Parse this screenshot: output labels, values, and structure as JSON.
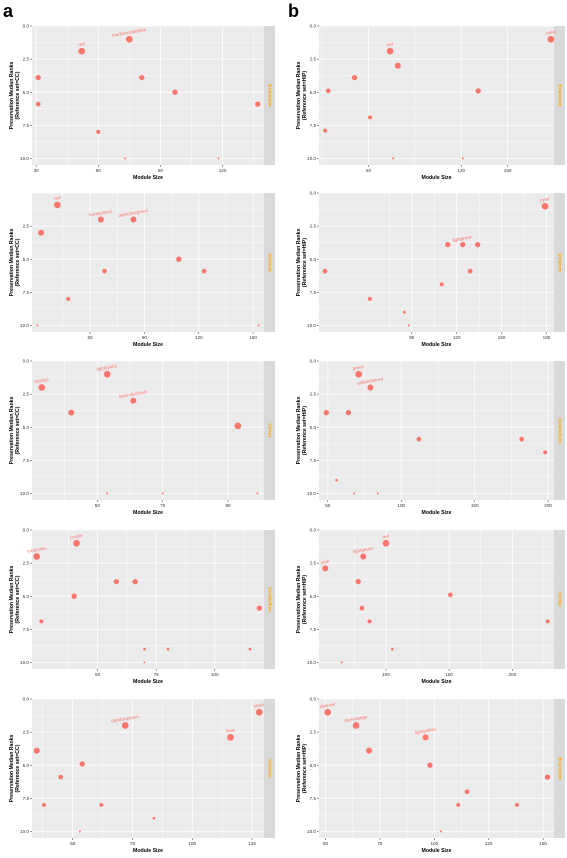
{
  "panel_labels": [
    "a",
    "b"
  ],
  "colors": {
    "point": "#f8766d",
    "panel_bg": "#ebebeb",
    "grid": "#ffffff",
    "strip_bg": "#d9d9d9",
    "strip_text": "#ffa500"
  },
  "chart_data": [
    {
      "type": "scatter",
      "column": "a",
      "row": 0,
      "xlabel": "Module Size",
      "ylabel": [
        "Preservation Median Ranks",
        "(Reference set=CC)"
      ],
      "strip": "Brainstem",
      "xlim": [
        28,
        140
      ],
      "ylim": [
        0,
        10.5
      ],
      "xticks": [
        30,
        60,
        90,
        120
      ],
      "yticks": [
        0,
        2.5,
        5,
        7.5,
        10
      ],
      "grid": true,
      "points": [
        {
          "x": 52,
          "y": 1.9,
          "size": 5,
          "label": "red"
        },
        {
          "x": 75,
          "y": 1.0,
          "size": 5,
          "label": "mediumslateblue"
        },
        {
          "x": 31,
          "y": 3.9,
          "size": 4,
          "label": ""
        },
        {
          "x": 81,
          "y": 3.9,
          "size": 4,
          "label": ""
        },
        {
          "x": 97,
          "y": 5.0,
          "size": 4,
          "label": ""
        },
        {
          "x": 31,
          "y": 5.9,
          "size": 3.5,
          "label": ""
        },
        {
          "x": 137,
          "y": 5.9,
          "size": 4,
          "label": ""
        },
        {
          "x": 60,
          "y": 8.0,
          "size": 3,
          "label": ""
        },
        {
          "x": 73,
          "y": 10.0,
          "size": 1.5,
          "label": ""
        },
        {
          "x": 118,
          "y": 10.0,
          "size": 1.5,
          "label": ""
        }
      ]
    },
    {
      "type": "scatter",
      "column": "b",
      "row": 0,
      "xlabel": "Module Size",
      "ylabel": [
        "Preservation Median Ranks",
        "(Reference set=HIP)"
      ],
      "strip": "Brainstem",
      "xlim": [
        28,
        180
      ],
      "ylim": [
        0,
        10.5
      ],
      "xticks": [
        60,
        120,
        150
      ],
      "yticks": [
        0,
        2.5,
        5,
        7.5,
        10
      ],
      "grid": true,
      "points": [
        {
          "x": 74,
          "y": 1.9,
          "size": 5,
          "label": "red"
        },
        {
          "x": 178,
          "y": 1.0,
          "size": 5,
          "label": "violet"
        },
        {
          "x": 79,
          "y": 3.0,
          "size": 4.5,
          "label": ""
        },
        {
          "x": 51,
          "y": 3.9,
          "size": 4,
          "label": ""
        },
        {
          "x": 34,
          "y": 4.9,
          "size": 3.5,
          "label": ""
        },
        {
          "x": 131,
          "y": 4.9,
          "size": 4,
          "label": ""
        },
        {
          "x": 61,
          "y": 6.9,
          "size": 3,
          "label": ""
        },
        {
          "x": 32,
          "y": 7.9,
          "size": 3,
          "label": ""
        },
        {
          "x": 76,
          "y": 10.0,
          "size": 1.5,
          "label": ""
        },
        {
          "x": 121,
          "y": 10.0,
          "size": 1.5,
          "label": ""
        }
      ]
    },
    {
      "type": "scatter",
      "column": "a",
      "row": 1,
      "xlabel": "Module Size",
      "ylabel": [
        "Preservation Median Ranks",
        "(Reference set=CC)"
      ],
      "strip": "Striatum",
      "xlim": [
        28,
        156
      ],
      "ylim": [
        0,
        10.5
      ],
      "xticks": [
        60,
        90,
        120,
        150
      ],
      "yticks": [
        2.5,
        5,
        7.5,
        10
      ],
      "grid": true,
      "points": [
        {
          "x": 42,
          "y": 0.9,
          "size": 5,
          "label": "red"
        },
        {
          "x": 66,
          "y": 2.0,
          "size": 4.5,
          "label": "honeydew1"
        },
        {
          "x": 84,
          "y": 2.0,
          "size": 4.5,
          "label": "darkolivegreen"
        },
        {
          "x": 33,
          "y": 3.0,
          "size": 4.5,
          "label": ""
        },
        {
          "x": 109,
          "y": 5.0,
          "size": 4,
          "label": ""
        },
        {
          "x": 68,
          "y": 5.9,
          "size": 3.5,
          "label": ""
        },
        {
          "x": 123,
          "y": 5.9,
          "size": 3.5,
          "label": ""
        },
        {
          "x": 48,
          "y": 8.0,
          "size": 3,
          "label": ""
        },
        {
          "x": 31,
          "y": 10.0,
          "size": 1.5,
          "label": ""
        },
        {
          "x": 153,
          "y": 10.0,
          "size": 1.5,
          "label": ""
        }
      ]
    },
    {
      "type": "scatter",
      "column": "b",
      "row": 1,
      "xlabel": "Module Size",
      "ylabel": [
        "Preservation Median Ranks",
        "(Reference set=HIP)"
      ],
      "strip": "Striatum",
      "xlim": [
        28,
        185
      ],
      "ylim": [
        0,
        10.5
      ],
      "xticks": [
        90,
        120,
        150,
        180
      ],
      "yticks": [
        0,
        2.5,
        5,
        7.5,
        10
      ],
      "grid": true,
      "points": [
        {
          "x": 179,
          "y": 1.0,
          "size": 5,
          "label": "cyan"
        },
        {
          "x": 114,
          "y": 3.9,
          "size": 4,
          "label": ""
        },
        {
          "x": 124,
          "y": 3.9,
          "size": 4,
          "label": "lightgreen"
        },
        {
          "x": 134,
          "y": 3.9,
          "size": 4,
          "label": ""
        },
        {
          "x": 32,
          "y": 5.9,
          "size": 3.5,
          "label": ""
        },
        {
          "x": 129,
          "y": 5.9,
          "size": 3.5,
          "label": ""
        },
        {
          "x": 110,
          "y": 6.9,
          "size": 3,
          "label": ""
        },
        {
          "x": 62,
          "y": 8.0,
          "size": 3,
          "label": ""
        },
        {
          "x": 85,
          "y": 9.0,
          "size": 2,
          "label": ""
        },
        {
          "x": 88,
          "y": 10.0,
          "size": 1.5,
          "label": ""
        }
      ]
    },
    {
      "type": "scatter",
      "column": "a",
      "row": 2,
      "xlabel": "Module Size",
      "ylabel": [
        "Preservation Median Ranks",
        "(Reference set=CC)"
      ],
      "strip": "Cortex",
      "xlim": [
        30,
        101
      ],
      "ylim": [
        0,
        10.5
      ],
      "xticks": [
        50,
        70,
        90
      ],
      "yticks": [
        0,
        2.5,
        5,
        7.5,
        10
      ],
      "grid": true,
      "points": [
        {
          "x": 33,
          "y": 2.0,
          "size": 5,
          "label": "thistle2"
        },
        {
          "x": 53,
          "y": 1.0,
          "size": 5,
          "label": "lightcyan1"
        },
        {
          "x": 61,
          "y": 3.0,
          "size": 4.5,
          "label": "lavenderblush"
        },
        {
          "x": 42,
          "y": 3.9,
          "size": 4.5,
          "label": ""
        },
        {
          "x": 93,
          "y": 4.9,
          "size": 5,
          "label": ""
        },
        {
          "x": 53,
          "y": 10.0,
          "size": 1.5,
          "label": ""
        },
        {
          "x": 70,
          "y": 10.0,
          "size": 1.5,
          "label": ""
        },
        {
          "x": 99,
          "y": 10.0,
          "size": 1.5,
          "label": ""
        }
      ]
    },
    {
      "type": "scatter",
      "column": "b",
      "row": 2,
      "xlabel": "Module Size",
      "ylabel": [
        "Preservation Median Ranks",
        "(Reference set=HIP)"
      ],
      "strip": "Cerebellum",
      "xlim": [
        44,
        204
      ],
      "ylim": [
        0,
        10.5
      ],
      "xticks": [
        50,
        100,
        150,
        200
      ],
      "yticks": [
        0,
        2.5,
        5,
        7.5,
        10
      ],
      "grid": true,
      "points": [
        {
          "x": 71,
          "y": 1.0,
          "size": 5,
          "label": "green"
        },
        {
          "x": 79,
          "y": 2.0,
          "size": 4.5,
          "label": "palevioletred"
        },
        {
          "x": 49,
          "y": 3.9,
          "size": 4,
          "label": ""
        },
        {
          "x": 64,
          "y": 3.9,
          "size": 4,
          "label": ""
        },
        {
          "x": 112,
          "y": 5.9,
          "size": 3.5,
          "label": ""
        },
        {
          "x": 182,
          "y": 5.9,
          "size": 3.5,
          "label": ""
        },
        {
          "x": 198,
          "y": 6.9,
          "size": 3,
          "label": ""
        },
        {
          "x": 56,
          "y": 9.0,
          "size": 2,
          "label": ""
        },
        {
          "x": 68,
          "y": 10.0,
          "size": 1.5,
          "label": ""
        },
        {
          "x": 84,
          "y": 10.0,
          "size": 1.5,
          "label": ""
        }
      ]
    },
    {
      "type": "scatter",
      "column": "a",
      "row": 3,
      "xlabel": "Module Size",
      "ylabel": [
        "Preservation Median Ranks",
        "(Reference set=CC)"
      ],
      "strip": "Cerebellum",
      "xlim": [
        22,
        121
      ],
      "ylim": [
        0,
        10.5
      ],
      "xticks": [
        50,
        75,
        100
      ],
      "yticks": [
        0,
        2.5,
        5,
        7.5,
        10
      ],
      "grid": true,
      "points": [
        {
          "x": 24,
          "y": 2.0,
          "size": 5,
          "label": "turquoise"
        },
        {
          "x": 41,
          "y": 1.0,
          "size": 5,
          "label": "purple"
        },
        {
          "x": 58,
          "y": 3.9,
          "size": 4,
          "label": ""
        },
        {
          "x": 66,
          "y": 3.9,
          "size": 4,
          "label": ""
        },
        {
          "x": 40,
          "y": 5.0,
          "size": 4,
          "label": ""
        },
        {
          "x": 119,
          "y": 5.9,
          "size": 4,
          "label": ""
        },
        {
          "x": 26,
          "y": 6.9,
          "size": 3,
          "label": ""
        },
        {
          "x": 70,
          "y": 9.0,
          "size": 2,
          "label": ""
        },
        {
          "x": 80,
          "y": 9.0,
          "size": 2,
          "label": ""
        },
        {
          "x": 115,
          "y": 9.0,
          "size": 2,
          "label": ""
        },
        {
          "x": 70,
          "y": 10.0,
          "size": 1.5,
          "label": ""
        }
      ]
    },
    {
      "type": "scatter",
      "column": "b",
      "row": 3,
      "xlabel": "Module Size",
      "ylabel": [
        "Preservation Median Ranks",
        "(Reference set=HIP)"
      ],
      "strip": "Cortex",
      "xlim": [
        47,
        233
      ],
      "ylim": [
        0,
        10.5
      ],
      "xticks": [
        100,
        150,
        200
      ],
      "yticks": [
        0,
        2.5,
        5,
        7.5,
        10
      ],
      "grid": true,
      "points": [
        {
          "x": 52,
          "y": 2.9,
          "size": 4.5,
          "label": "pink"
        },
        {
          "x": 82,
          "y": 2.0,
          "size": 4.5,
          "label": "lightgreen"
        },
        {
          "x": 100,
          "y": 1.0,
          "size": 5,
          "label": "red"
        },
        {
          "x": 78,
          "y": 3.9,
          "size": 4,
          "label": ""
        },
        {
          "x": 151,
          "y": 4.9,
          "size": 3.5,
          "label": ""
        },
        {
          "x": 81,
          "y": 5.9,
          "size": 3.5,
          "label": ""
        },
        {
          "x": 87,
          "y": 6.9,
          "size": 3,
          "label": ""
        },
        {
          "x": 228,
          "y": 6.9,
          "size": 3,
          "label": ""
        },
        {
          "x": 105,
          "y": 9.0,
          "size": 2,
          "label": ""
        },
        {
          "x": 65,
          "y": 10.0,
          "size": 1.5,
          "label": ""
        }
      ]
    },
    {
      "type": "scatter",
      "column": "a",
      "row": 4,
      "xlabel": "Module Size",
      "ylabel": [
        "Preservation Median Ranks",
        "(Reference set=CC)"
      ],
      "strip": "Striatum",
      "xlim": [
        33,
        130
      ],
      "ylim": [
        0,
        10.5
      ],
      "xticks": [
        50,
        75,
        100,
        125
      ],
      "yticks": [
        0,
        2.5,
        5,
        7.5,
        10
      ],
      "grid": true,
      "points": [
        {
          "x": 128,
          "y": 1.0,
          "size": 5,
          "label": "black"
        },
        {
          "x": 72,
          "y": 2.0,
          "size": 5,
          "label": "darkturquoise"
        },
        {
          "x": 116,
          "y": 2.9,
          "size": 5,
          "label": "blue"
        },
        {
          "x": 35,
          "y": 3.9,
          "size": 4.5,
          "label": ""
        },
        {
          "x": 54,
          "y": 4.9,
          "size": 4,
          "label": ""
        },
        {
          "x": 45,
          "y": 5.9,
          "size": 3.5,
          "label": ""
        },
        {
          "x": 38,
          "y": 8.0,
          "size": 3,
          "label": ""
        },
        {
          "x": 62,
          "y": 8.0,
          "size": 3,
          "label": ""
        },
        {
          "x": 84,
          "y": 9.0,
          "size": 2,
          "label": ""
        },
        {
          "x": 53,
          "y": 10.0,
          "size": 1.5,
          "label": ""
        }
      ]
    },
    {
      "type": "scatter",
      "column": "b",
      "row": 4,
      "xlabel": "Module Size",
      "ylabel": [
        "Preservation Median Ranks",
        "(Reference set=HIP)"
      ],
      "strip": "Brainstem",
      "xlim": [
        47,
        155
      ],
      "ylim": [
        0,
        10.5
      ],
      "xticks": [
        50,
        75,
        100,
        125,
        150
      ],
      "yticks": [
        0,
        2.5,
        5,
        7.5,
        10
      ],
      "grid": true,
      "points": [
        {
          "x": 51,
          "y": 1.0,
          "size": 5,
          "label": "darkred"
        },
        {
          "x": 64,
          "y": 2.0,
          "size": 5,
          "label": "darkorange"
        },
        {
          "x": 96,
          "y": 2.9,
          "size": 4.5,
          "label": "lightyellow"
        },
        {
          "x": 70,
          "y": 3.9,
          "size": 4.5,
          "label": ""
        },
        {
          "x": 98,
          "y": 5.0,
          "size": 4,
          "label": ""
        },
        {
          "x": 152,
          "y": 5.9,
          "size": 4,
          "label": ""
        },
        {
          "x": 115,
          "y": 7.0,
          "size": 3.5,
          "label": ""
        },
        {
          "x": 111,
          "y": 8.0,
          "size": 3,
          "label": ""
        },
        {
          "x": 138,
          "y": 8.0,
          "size": 3,
          "label": ""
        },
        {
          "x": 103,
          "y": 10.0,
          "size": 1.5,
          "label": ""
        }
      ]
    }
  ]
}
